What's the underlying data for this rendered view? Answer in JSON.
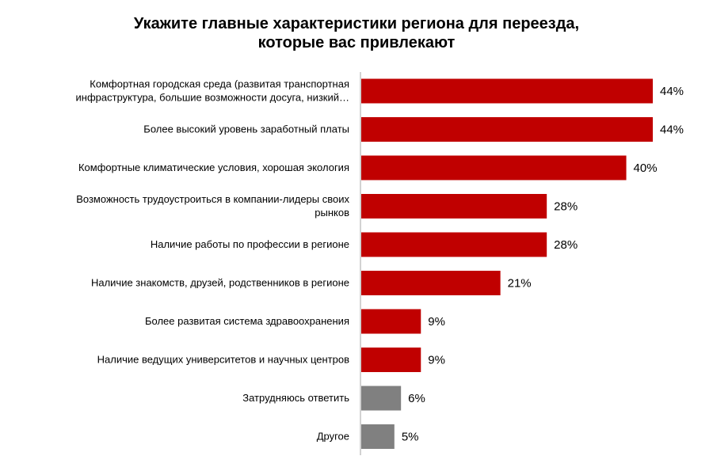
{
  "chart_data": {
    "type": "bar",
    "orientation": "horizontal",
    "title_lines": [
      "Укажите главные характеристики региона для переезда,",
      "которые вас привлекают"
    ],
    "categories": [
      [
        "Комфортная городская среда (развитая транспортная",
        "инфраструктура, большие возможности досуга, низкий…"
      ],
      [
        "Более высокий уровень заработный платы"
      ],
      [
        "Комфортные климатические условия, хорошая экология"
      ],
      [
        "Возможность трудоустроиться в компании-лидеры своих",
        "рынков"
      ],
      [
        "Наличие работы по профессии в регионе"
      ],
      [
        "Наличие знакомств, друзей, родственников в регионе"
      ],
      [
        "Более развитая система здравоохранения"
      ],
      [
        "Наличие ведущих университетов и научных центров"
      ],
      [
        "Затрудняюсь ответить"
      ],
      [
        "Другое"
      ]
    ],
    "values": [
      44,
      44,
      40,
      28,
      28,
      21,
      9,
      9,
      6,
      5
    ],
    "value_labels": [
      "44%",
      "44%",
      "40%",
      "28%",
      "28%",
      "21%",
      "9%",
      "9%",
      "6%",
      "5%"
    ],
    "bar_colors": [
      "#c00000",
      "#c00000",
      "#c00000",
      "#c00000",
      "#c00000",
      "#c00000",
      "#c00000",
      "#c00000",
      "#808080",
      "#808080"
    ],
    "grid": false,
    "legend": false
  }
}
